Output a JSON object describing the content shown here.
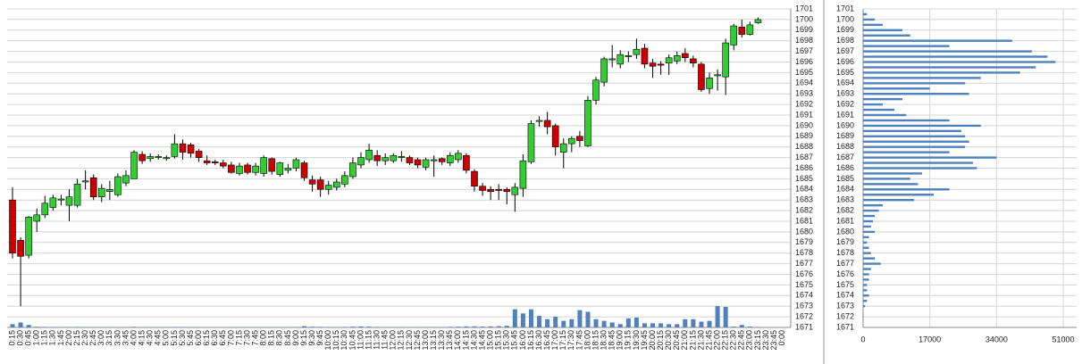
{
  "chart_data": [
    {
      "type": "candlestick",
      "categories": [
        "0:15",
        "0:30",
        "0:45",
        "1:00",
        "1:15",
        "1:30",
        "1:45",
        "2:00",
        "2:15",
        "2:30",
        "2:45",
        "3:00",
        "3:15",
        "3:30",
        "3:45",
        "4:00",
        "4:15",
        "4:30",
        "4:45",
        "5:00",
        "5:15",
        "5:30",
        "5:45",
        "6:00",
        "6:15",
        "6:30",
        "6:45",
        "7:00",
        "7:15",
        "7:30",
        "7:45",
        "8:00",
        "8:15",
        "8:30",
        "8:45",
        "9:00",
        "9:15",
        "9:30",
        "9:45",
        "10:00",
        "10:15",
        "10:30",
        "10:45",
        "11:00",
        "11:15",
        "11:30",
        "11:45",
        "12:00",
        "12:15",
        "12:30",
        "12:45",
        "13:00",
        "13:15",
        "13:30",
        "13:45",
        "14:00",
        "14:15",
        "14:30",
        "14:45",
        "15:00",
        "15:15",
        "15:30",
        "15:45",
        "16:00",
        "16:15",
        "16:30",
        "16:45",
        "17:00",
        "17:15",
        "17:30",
        "17:45",
        "18:00",
        "18:15",
        "18:30",
        "18:45",
        "19:00",
        "19:15",
        "19:30",
        "19:45",
        "20:00",
        "20:15",
        "20:30",
        "20:45",
        "21:00",
        "21:15",
        "21:30",
        "21:45",
        "22:00",
        "22:15",
        "22:30",
        "22:45",
        "23:00",
        "23:15",
        "23:30",
        "23:45",
        "0:00"
      ],
      "open": [
        1683,
        1679.2,
        1677.8,
        1681,
        1681.6,
        1682.3,
        1683,
        1682.5,
        1682.5,
        1684.7,
        1685.1,
        1683.3,
        1683.8,
        1683.5,
        1684.6,
        1685,
        1687.3,
        1686.9,
        1687,
        1686.9,
        1687.1,
        1688.3,
        1688.2,
        1687.6,
        1686.7,
        1686.6,
        1686.5,
        1686.3,
        1685.5,
        1686.3,
        1685.6,
        1685.5,
        1686.9,
        1685.4,
        1685.8,
        1686,
        1686.5,
        1684.9,
        1684.9,
        1684,
        1684.2,
        1684.5,
        1685.2,
        1686.3,
        1686.8,
        1687.2,
        1686.7,
        1686.7,
        1687,
        1687,
        1686.8,
        1686.1,
        1686.7,
        1686.9,
        1686.5,
        1686.8,
        1687.2,
        1685.7,
        1684.3,
        1684,
        1684,
        1684,
        1683.5,
        1684.1,
        1686.6,
        1690.4,
        1690.5,
        1690,
        1687.5,
        1688.3,
        1689,
        1688.1,
        1692.4,
        1694.1,
        1696.2,
        1695.8,
        1696.5,
        1696.7,
        1697.3,
        1695.9,
        1695.8,
        1695.9,
        1696.1,
        1696.8,
        1696.3,
        1695.8,
        1693.5,
        1694.7,
        1694.6,
        1697.6,
        1699.3,
        1698.6,
        1699.7,
        null,
        null,
        null
      ],
      "high": [
        1684.2,
        1679.5,
        1681.5,
        1682.2,
        1683.4,
        1683.5,
        1683.5,
        1684,
        1685,
        1685.8,
        1685.4,
        1684.5,
        1684.8,
        1685.5,
        1685.8,
        1687.7,
        1687.6,
        1687.4,
        1687.3,
        1687.2,
        1689.2,
        1688.7,
        1688.4,
        1687.8,
        1687.2,
        1686.8,
        1686.8,
        1686.6,
        1686.5,
        1686.5,
        1686.5,
        1687.2,
        1687,
        1686.6,
        1686.4,
        1687,
        1686.7,
        1685.3,
        1685.2,
        1684.8,
        1685,
        1685.7,
        1687,
        1687.5,
        1688.3,
        1687.7,
        1687.4,
        1687.4,
        1687.6,
        1687.2,
        1687,
        1687,
        1687.2,
        1687,
        1687.5,
        1687.7,
        1687.4,
        1685.9,
        1684.6,
        1684.3,
        1684.5,
        1684.2,
        1684.6,
        1687.3,
        1690.5,
        1690.9,
        1691.3,
        1690.2,
        1688.8,
        1689,
        1689.5,
        1692.8,
        1694.6,
        1696.5,
        1697.6,
        1697.1,
        1697,
        1698.2,
        1697.7,
        1696.3,
        1696.1,
        1696.7,
        1697,
        1697.3,
        1696.6,
        1696,
        1695,
        1695.3,
        1698.2,
        1699.6,
        1700,
        1699.8,
        1700.2,
        null,
        null,
        null
      ],
      "low": [
        1677.5,
        1673,
        1677.5,
        1680,
        1681.3,
        1682,
        1682.5,
        1681,
        1682.3,
        1684,
        1683,
        1682.8,
        1683,
        1683.3,
        1684.3,
        1685,
        1686.4,
        1686.6,
        1686.8,
        1686.7,
        1686.9,
        1686.8,
        1687,
        1686.6,
        1686.3,
        1686.3,
        1686,
        1685.5,
        1685.3,
        1685.4,
        1685.3,
        1685.2,
        1685.4,
        1685.2,
        1685.5,
        1685.7,
        1684.8,
        1683.8,
        1683.3,
        1683.5,
        1683.9,
        1684.2,
        1685,
        1686,
        1686.5,
        1686.2,
        1686.3,
        1686.5,
        1686.6,
        1686.3,
        1686,
        1685.8,
        1685.2,
        1686.3,
        1686.2,
        1686.5,
        1685.5,
        1683.8,
        1683.4,
        1683,
        1683,
        1682.6,
        1681.9,
        1683.3,
        1686.4,
        1689.9,
        1689.2,
        1687.2,
        1686,
        1687.5,
        1688,
        1688,
        1692,
        1693.7,
        1695.5,
        1695.4,
        1696,
        1696.3,
        1695.4,
        1694.5,
        1694.8,
        1694.8,
        1695.8,
        1696,
        1695.5,
        1693.2,
        1693,
        1693.3,
        1692.9,
        1697.1,
        1698.3,
        1698.5,
        1699.6,
        null,
        null,
        null
      ],
      "close": [
        1678,
        1677.7,
        1681.4,
        1681.6,
        1682.7,
        1683.2,
        1683.1,
        1683.3,
        1684.5,
        1684.8,
        1683.3,
        1684.1,
        1684,
        1685.2,
        1685.3,
        1687.5,
        1686.7,
        1687.1,
        1687.1,
        1687,
        1688.3,
        1687.5,
        1687.4,
        1687,
        1686.5,
        1686.5,
        1686.2,
        1685.6,
        1686.2,
        1685.6,
        1686.2,
        1687,
        1685.7,
        1686.5,
        1686,
        1686.8,
        1685.1,
        1684.5,
        1684,
        1684.4,
        1684.7,
        1685.3,
        1686.5,
        1687,
        1687.7,
        1686.7,
        1687,
        1687.2,
        1687.1,
        1686.5,
        1686.3,
        1686.8,
        1686.8,
        1686.6,
        1687.2,
        1687.4,
        1685.8,
        1684.3,
        1683.9,
        1683.8,
        1683.9,
        1683.8,
        1684.2,
        1686.7,
        1690.2,
        1690.5,
        1689.9,
        1688,
        1688.3,
        1688.8,
        1688.6,
        1692.4,
        1694.3,
        1696.3,
        1696.3,
        1696.7,
        1696.6,
        1697.2,
        1695.8,
        1695.6,
        1695.7,
        1696.4,
        1696.6,
        1696.4,
        1695.9,
        1693.4,
        1694.5,
        1694.8,
        1697.8,
        1699.4,
        1698.6,
        1699.5,
        1700,
        null,
        null,
        null
      ],
      "volume": [
        4000,
        6000,
        3000,
        800,
        600,
        500,
        400,
        500,
        600,
        500,
        500,
        400,
        400,
        500,
        500,
        700,
        500,
        400,
        300,
        300,
        600,
        500,
        400,
        400,
        300,
        300,
        300,
        400,
        300,
        300,
        400,
        500,
        400,
        400,
        300,
        500,
        1500,
        800,
        700,
        500,
        500,
        600,
        900,
        1200,
        1000,
        600,
        500,
        400,
        500,
        400,
        400,
        500,
        500,
        400,
        700,
        900,
        1200,
        1300,
        1000,
        1200,
        1500,
        2000,
        22000,
        17000,
        22000,
        14000,
        10000,
        13000,
        8000,
        10000,
        21000,
        19000,
        10000,
        8000,
        6000,
        4000,
        11000,
        12000,
        5000,
        5000,
        5000,
        4000,
        4000,
        10000,
        10000,
        7000,
        8000,
        26000,
        25000,
        1000,
        3000,
        1000,
        500,
        null,
        null,
        null
      ],
      "up_color": "#33cc33",
      "down_color": "#cc0000",
      "volume_color": "#4f81bd",
      "ylim": [
        1671,
        1701
      ],
      "yticks": [
        1671,
        1672,
        1673,
        1674,
        1675,
        1676,
        1677,
        1678,
        1679,
        1680,
        1681,
        1682,
        1683,
        1684,
        1685,
        1686,
        1687,
        1688,
        1689,
        1690,
        1691,
        1692,
        1693,
        1694,
        1695,
        1696,
        1697,
        1698,
        1699,
        1700,
        1701
      ],
      "grid": true
    },
    {
      "type": "bar",
      "orientation": "horizontal",
      "y": [
        1673,
        1673.5,
        1674,
        1674.5,
        1675,
        1675.5,
        1676,
        1676.5,
        1677,
        1677.5,
        1678,
        1678.5,
        1679,
        1679.5,
        1680,
        1680.5,
        1681,
        1681.5,
        1682,
        1682.5,
        1683,
        1683.5,
        1684,
        1684.5,
        1685,
        1685.5,
        1686,
        1686.5,
        1687,
        1687.5,
        1688,
        1688.5,
        1689,
        1689.5,
        1690,
        1690.5,
        1691,
        1691.5,
        1692,
        1692.5,
        1693,
        1693.5,
        1694,
        1694.5,
        1695,
        1695.5,
        1696,
        1696.5,
        1697,
        1697.5,
        1698,
        1698.5,
        1699,
        1699.5,
        1700,
        1700.5
      ],
      "values": [
        500,
        1000,
        1500,
        1000,
        1000,
        1500,
        1500,
        2000,
        4500,
        3000,
        2000,
        1500,
        1000,
        1500,
        3000,
        2000,
        2500,
        3000,
        4000,
        5000,
        13000,
        18000,
        22000,
        14000,
        12000,
        15000,
        29000,
        28000,
        34000,
        22000,
        26000,
        27000,
        26000,
        25000,
        30000,
        22000,
        11000,
        8000,
        5000,
        10000,
        27000,
        17000,
        26000,
        30000,
        40000,
        44000,
        49000,
        47000,
        43000,
        22000,
        38000,
        12000,
        10000,
        5000,
        3000,
        1000
      ],
      "color": "#4f81bd",
      "xlim": [
        0,
        51000
      ],
      "xticks": [
        0,
        17000,
        34000,
        51000
      ],
      "ylim": [
        1671,
        1701
      ],
      "yticks": [
        1671,
        1672,
        1673,
        1674,
        1675,
        1676,
        1677,
        1678,
        1679,
        1680,
        1681,
        1682,
        1683,
        1684,
        1685,
        1686,
        1687,
        1688,
        1689,
        1690,
        1691,
        1692,
        1693,
        1694,
        1695,
        1696,
        1697,
        1698,
        1699,
        1700,
        1701
      ],
      "grid": true
    }
  ]
}
